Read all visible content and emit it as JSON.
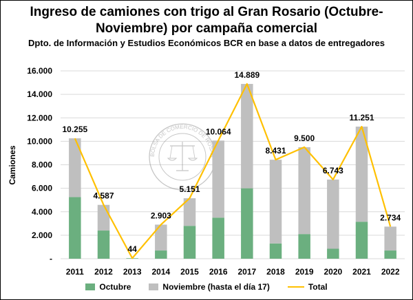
{
  "title": "Ingreso de camiones con trigo al Gran Rosario (Octubre-Noviembre) por campaña comercial",
  "subtitle": "Dpto. de Información y Estudios Económicos BCR en base a datos de entregadores",
  "watermark": "BOLSA DE COMERCIO DE ROSARIO",
  "colors": {
    "octubre": "#6BAF7F",
    "noviembre": "#BFBFBF",
    "total": "#FFC000",
    "grid": "#D9D9D9"
  },
  "chart_data": {
    "type": "bar",
    "stacked": true,
    "categories": [
      "2011",
      "2012",
      "2013",
      "2014",
      "2015",
      "2016",
      "2017",
      "2018",
      "2019",
      "2020",
      "2021",
      "2022"
    ],
    "series": [
      {
        "name": "Octubre",
        "type": "bar",
        "values": [
          5250,
          2400,
          44,
          700,
          2800,
          3500,
          6000,
          1300,
          2100,
          850,
          3150,
          700
        ]
      },
      {
        "name": "Noviembre (hasta el día 17)",
        "type": "bar",
        "values": [
          5005,
          2187,
          0,
          2203,
          2351,
          6564,
          8889,
          7131,
          7400,
          5893,
          8101,
          2034
        ]
      },
      {
        "name": "Total",
        "type": "line",
        "values": [
          10255,
          4587,
          44,
          2903,
          5151,
          10064,
          14889,
          8431,
          9500,
          6743,
          11251,
          2734
        ]
      }
    ],
    "data_labels": [
      "10.255",
      "4.587",
      "44",
      "2.903",
      "5.151",
      "10.064",
      "14.889",
      "8.431",
      "9.500",
      "6.743",
      "11.251",
      "2.734"
    ],
    "ylabel": "Camiones",
    "xlabel": "",
    "ylim": [
      0,
      16000
    ],
    "yticks": [
      0,
      2000,
      4000,
      6000,
      8000,
      10000,
      12000,
      14000,
      16000
    ],
    "ytick_labels": [
      "-",
      "2.000",
      "4.000",
      "6.000",
      "8.000",
      "10.000",
      "12.000",
      "14.000",
      "16.000"
    ],
    "grid": true,
    "legend_position": "bottom"
  },
  "legend": [
    "Octubre",
    "Noviembre (hasta el día 17)",
    "Total"
  ]
}
